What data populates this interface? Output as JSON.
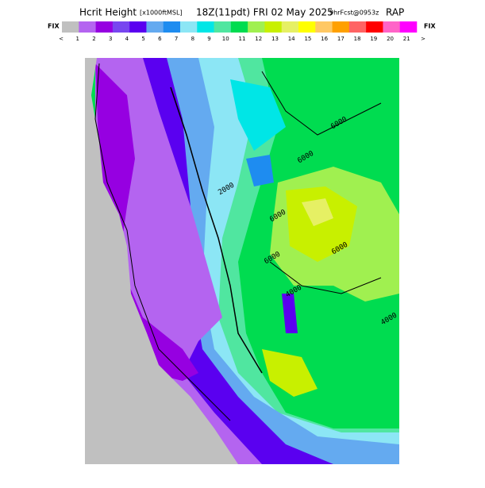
{
  "header": {
    "title": "Hcrit Height",
    "units": "[x1000ftMSL]",
    "time": "18Z(11pdt) FRI 02 May 2025",
    "forecast": "9hrFcst@0953z",
    "model": "RAP"
  },
  "colorbar": {
    "left_label": "FIX",
    "right_label": "FIX",
    "colors": [
      "#c0c0c0",
      "#b464f0",
      "#9600e1",
      "#7846f0",
      "#5a00f0",
      "#64aaf0",
      "#1e8cf0",
      "#8ce6f5",
      "#00e6e6",
      "#50e6a0",
      "#00dc50",
      "#a0f050",
      "#c8f000",
      "#e6f064",
      "#ffff00",
      "#ffc864",
      "#ffa000",
      "#ff6464",
      "#ff0000",
      "#ff64c8",
      "#ff00ff"
    ],
    "labels": [
      "<",
      "1",
      "2",
      "3",
      "4",
      "5",
      "6",
      "7",
      "8",
      "9",
      "10",
      "11",
      "12",
      "13",
      "14",
      "15",
      "16",
      "17",
      "18",
      "19",
      "20",
      "21",
      ">"
    ]
  },
  "map": {
    "contour_labels": [
      "6000",
      "6000",
      "6000",
      "6000",
      "6000",
      "4000",
      "4000",
      "2000"
    ]
  }
}
